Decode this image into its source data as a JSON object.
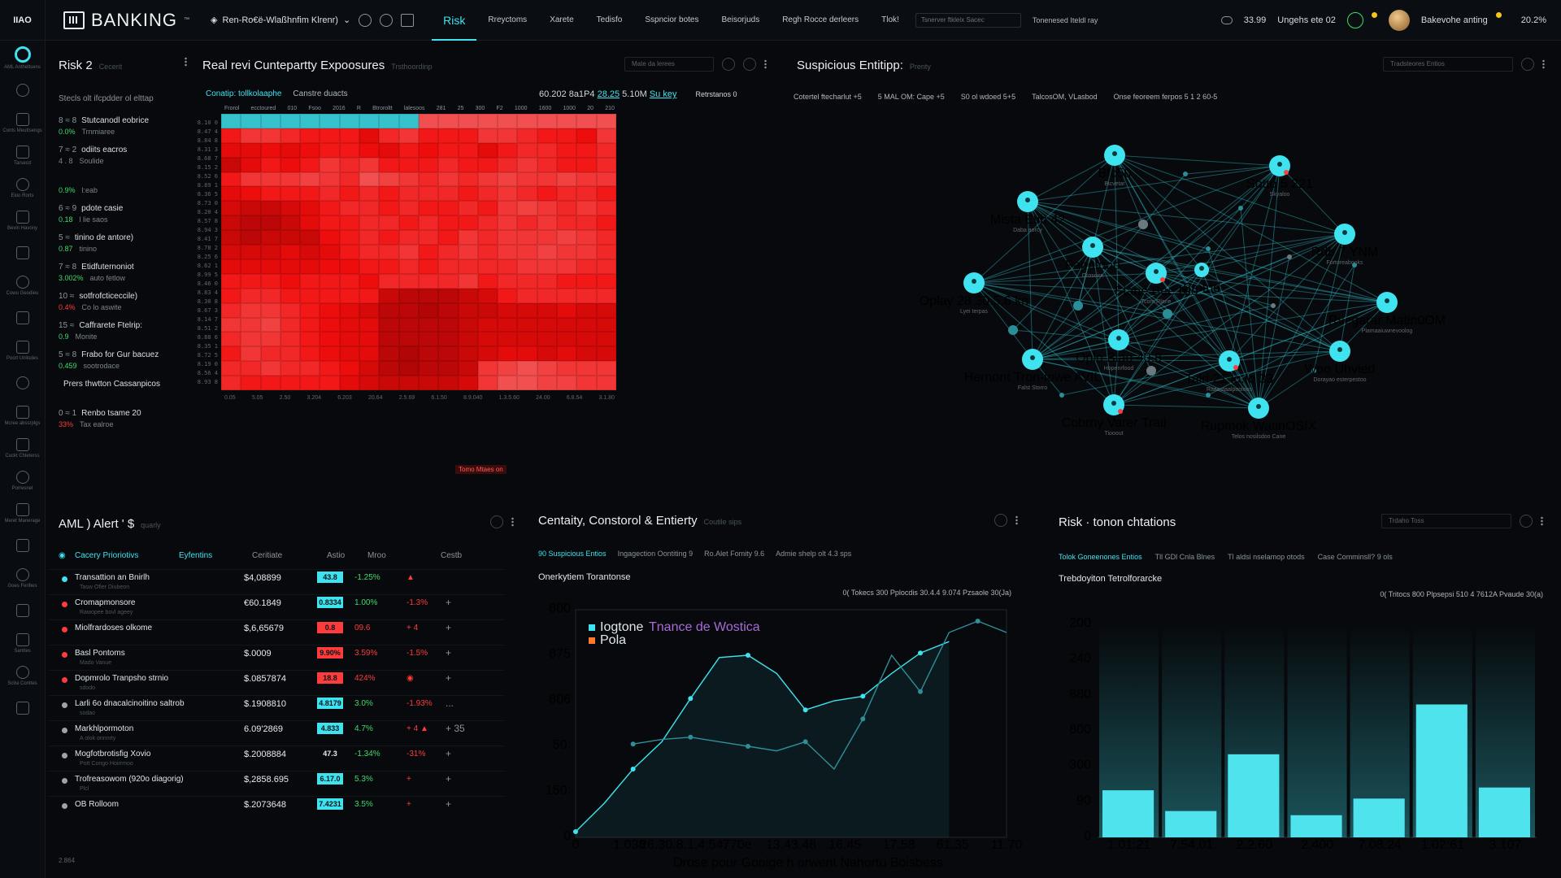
{
  "topbar": {
    "mini_logo": "IIAO",
    "brand": "BANKING",
    "brand_tm": "™",
    "crumb": "Ren-Ro€ë-Wlaßhnfim Klrenr)",
    "nav": [
      "Risk",
      "Rreyctoms",
      "Xarete",
      "Tedisfo",
      "Sspncior botes",
      "Beisorjuds",
      "Regh Rocce derleers",
      "Tlok!"
    ],
    "active_nav": "Risk",
    "select_placeholder": "Tsnerver ftkleix Sacec",
    "link": "Tonenesed Iteldl ray",
    "stat": "33.99",
    "stat_label": "Ungehs ete 02",
    "user": "Bakevohe anting",
    "version": "20.2%"
  },
  "sidebar": {
    "items": [
      {
        "icon": "target-icon",
        "label": "AML Antheltsens"
      },
      {
        "icon": "globe-icon",
        "label": ""
      },
      {
        "icon": "flow-icon",
        "label": "Conts Meuttsengs"
      },
      {
        "icon": "clock-icon",
        "label": "Tarsecd"
      },
      {
        "icon": "pin-icon",
        "label": "Eloo Rorts"
      },
      {
        "icon": "gear-icon",
        "label": "Bevin Havony"
      },
      {
        "icon": "upload-icon",
        "label": ""
      },
      {
        "icon": "pen-icon",
        "label": "Cowu Geodieu"
      },
      {
        "icon": "users-icon",
        "label": ""
      },
      {
        "icon": "eye-icon",
        "label": "Poorl Unllodes"
      },
      {
        "icon": "grid-icon",
        "label": ""
      },
      {
        "icon": "home-icon",
        "label": "Mcree abssrplgs"
      },
      {
        "icon": "settings-icon",
        "label": "Cuckt Chleterss"
      },
      {
        "icon": "layers-icon",
        "label": "Porresnel"
      },
      {
        "icon": "mail-icon",
        "label": "Meret Manerage"
      },
      {
        "icon": "moon-icon",
        "label": ""
      },
      {
        "icon": "help-icon",
        "label": "Goes Feribes"
      },
      {
        "icon": "edit-icon",
        "label": ""
      },
      {
        "icon": "bell-icon",
        "label": "Santtes"
      },
      {
        "icon": "doc-icon",
        "label": "Sclisi Conttes"
      },
      {
        "icon": "send-icon",
        "label": ""
      }
    ]
  },
  "risk": {
    "title": "Risk",
    "count": "2",
    "subtitle": "Cecerit",
    "header": "Stecls olt ifcpdder ol elttap",
    "items": [
      {
        "num": "8 ≈ 8",
        "name": "Stutcanodl eobrice",
        "val": "0.0%",
        "val_color": "g",
        "sub": "Trnmiaree"
      },
      {
        "num": "7 ≈ 2",
        "name": "odiits eacros",
        "val": "4 . 8",
        "val_color": "n",
        "sub": "Soulide"
      },
      {
        "num": "",
        "name": "",
        "val": "0.9%",
        "val_color": "g",
        "sub": "l:eab"
      },
      {
        "num": "6 ≈ 9",
        "name": "pdote casie",
        "val": "0.18",
        "val_color": "g",
        "sub": "l lie saos"
      },
      {
        "num": "5 ≈",
        "name": "tinino de antore)",
        "val": "0.87",
        "val_color": "g",
        "sub": "tinino"
      },
      {
        "num": "7 ≈ 8",
        "name": "Etidfuternoniot",
        "val": "3.002%",
        "val_color": "g",
        "sub": "auto fetlow"
      },
      {
        "num": "10 ≈",
        "name": "sotfrofcticeccile)",
        "val": "0.4%",
        "val_color": "r",
        "sub": "Co lo aswite"
      },
      {
        "num": "15 ≈",
        "name": "Caffrarete Ftelrip:",
        "val": "0.9",
        "val_color": "g",
        "sub": "Monite"
      },
      {
        "num": "5 ≈ 8",
        "name": "Frabo for Gur bacuez",
        "val": "0.459",
        "val_color": "g",
        "sub": "sootrodace"
      },
      {
        "num": "",
        "name": "Prers thwtton Cassanpicos",
        "val": "",
        "val_color": "n",
        "sub": ""
      },
      {
        "num": "0 ≈ 1",
        "name": "Renbo tsame 20",
        "val": "33%",
        "val_color": "r",
        "sub": "Tax ealroe"
      }
    ]
  },
  "exposures": {
    "title": "Real revi Cuntepartty Expoosures",
    "subtitle": "Trsthoordinp",
    "search": "Mate da lerees",
    "tab_active": "Conatip: tollkolaaphe",
    "tab2": "Canstre duacts",
    "stat_a": "60.202 8a1P4",
    "stat_b": "28.25",
    "stat_c": "5.10M",
    "stat_d": "Su key",
    "stat_e": "Retrstanos 0",
    "x_top": [
      "Frorol",
      "ecctoured",
      "010",
      "Fsoo",
      "2016",
      "R",
      "Btroroltt",
      "lalesoos",
      "281",
      "25",
      "300",
      "F2",
      "1000",
      "1600",
      "1000",
      "20",
      "210"
    ],
    "x_bottom": [
      "0.05",
      "5.05",
      "2.50",
      "3.204",
      "6.203",
      "20.64",
      "2.5.69",
      "6.1.50",
      "8.9.040",
      "1.3.5.60",
      "24.00",
      "6.8.54",
      "3.1.80"
    ],
    "footer_label": "Tomo Mtaes on"
  },
  "network": {
    "title": "Suspicious Entitipp:",
    "subtitle": "Prenty",
    "search": "Tradsteores Entios",
    "filters": [
      "Cotertel ftecharlut +5",
      "5 MAL OM: Cape +5",
      "S0 ol wdoed 5+5",
      "TalcosOM, VLasbod",
      "Onse feoreem ferpos 5 1 2 60-5"
    ],
    "nodes": [
      {
        "label": "Bfc50",
        "sub": "Bicvetar"
      },
      {
        "label": "Sotto 5 221",
        "sub": "Skyaloo"
      },
      {
        "label": "Mista Etib 42",
        "sub": "Daba aorcy"
      },
      {
        "label": "Fapotooo",
        "sub": "Grosoirn"
      },
      {
        "label": "Stane Bee Nlo",
        "sub": "Tcom Rlane"
      },
      {
        "label": "Rdb 7 YNM",
        "sub": "Fortoreabooks"
      },
      {
        "label": "Oplay 28 30.5.6 kn",
        "sub": "Lyei terpas"
      },
      {
        "label": "Rsegarar Matin0OM",
        "sub": "Plamaaiuwnevoolog"
      },
      {
        "label": "Hernont Tron-lowe AVIL",
        "sub": "Falst Storro"
      },
      {
        "label": "Oplo Blao 40.8",
        "sub": "Hopenrfood"
      },
      {
        "label": "Tald 21 lo.fo 33",
        "sub": "Raaastaalpooloos"
      },
      {
        "label": "Woo Uhvied",
        "sub": "Dorayao esterpestoo"
      },
      {
        "label": "Cobrny Varer Trail",
        "sub": "Tiooout"
      },
      {
        "label": "Rupmok WatinOSIX",
        "sub": "Telos nosilsdoo Cane"
      },
      {
        "label": "Stotnd",
        "sub": ""
      }
    ]
  },
  "aml": {
    "title": "AML ) Alert ' $",
    "subtitle": "quarly",
    "tab1": "Cacery Prioriotivs",
    "tab2": "Eyfentins",
    "cols": [
      "Ceritiate",
      "Astio",
      "Mroo",
      "Cestb"
    ],
    "rows": [
      {
        "name": "Transattion an Bnirlh",
        "sub": "Tasw Ofier Diubeon",
        "amount": "$4,08899",
        "badge": "43.8",
        "badge_color": "#3ee3ef",
        "pct": "-1.25%",
        "pct_color": "g",
        "chg": "▲",
        "chg_color": "r",
        "act": "",
        "mark": "#3ee3ef"
      },
      {
        "name": "Cromapmonsore",
        "sub": "Rawopee bovl ageey",
        "amount": "€60.1849",
        "badge": "0.8334",
        "badge_color": "#3ee3ef",
        "pct": "1.00%",
        "pct_color": "g",
        "chg": "-1.3%",
        "chg_color": "r",
        "act": "+",
        "mark": "#ff3b3b"
      },
      {
        "name": "Miolfrardoses olkome",
        "sub": "",
        "amount": "$,6,65679",
        "badge": "0.8",
        "badge_color": "#ff3b3b",
        "pct": "09.6",
        "pct_color": "r",
        "chg": "+ 4",
        "chg_color": "r",
        "act": "+",
        "mark": "#ff3b3b"
      },
      {
        "name": "Basl Pontoms",
        "sub": "Mado Vanue",
        "amount": "$.0009",
        "badge": "9.90%",
        "badge_color": "#ff3b3b",
        "pct": "3.59%",
        "pct_color": "r",
        "chg": "-1.5%",
        "chg_color": "r",
        "act": "+",
        "mark": "#ff3b3b"
      },
      {
        "name": "Dopmrolo Tranpsho strnio",
        "sub": "sdodo",
        "amount": "$.0857874",
        "badge": "18.8",
        "badge_color": "#ff3b3b",
        "pct": "424%",
        "pct_color": "r",
        "chg": "◉",
        "chg_color": "r",
        "act": "+",
        "mark": "#ff3b3b"
      },
      {
        "name": "Larli 6o dnacalcinoitino saltrob",
        "sub": "sodao",
        "amount": "$.1908810",
        "badge": "4.8179",
        "badge_color": "#3ee3ef",
        "pct": "3.0%",
        "pct_color": "g",
        "chg": "-1.93%",
        "chg_color": "r",
        "act": "...",
        "mark": "#9aa4aa"
      },
      {
        "name": "Markhlpormoton",
        "sub": "A olok onnnrty",
        "amount": "6.09'2869",
        "badge": "4.833",
        "badge_color": "#3ee3ef",
        "pct": "4.7%",
        "pct_color": "g",
        "chg": "+ 4 ▲",
        "chg_color": "r",
        "act": "+ 35",
        "mark": "#9aa4aa"
      },
      {
        "name": "Mogfotbrotisfig Xovio",
        "sub": "Pott Congo Hoirrmoo",
        "amount": "$.2008884",
        "badge": "47.3",
        "badge_color": "",
        "pct": "-1.34%",
        "pct_color": "g",
        "chg": "-31%",
        "chg_color": "r",
        "act": "+",
        "mark": "#9aa4aa"
      },
      {
        "name": "Trofreasowom (920o diagorig)",
        "sub": "Plcl",
        "amount": "$,2858.695",
        "badge": "6.17.0",
        "badge_color": "#3ee3ef",
        "pct": "5.3%",
        "pct_color": "g",
        "chg": "+",
        "chg_color": "r",
        "act": "+",
        "mark": "#9aa4aa"
      },
      {
        "name": "OB Rolloom",
        "sub": "",
        "amount": "$.2073648",
        "badge": "7.4231",
        "badge_color": "#3ee3ef",
        "pct": "3.5%",
        "pct_color": "g",
        "chg": "+",
        "chg_color": "r",
        "act": "+",
        "mark": "#9aa4aa"
      }
    ],
    "footer": "2.864"
  },
  "centrality": {
    "title": "Centaity, Constorol & Entierty",
    "subtitle": "Coutile sips",
    "filters": [
      "90 Suspicious Entios",
      "Ingagection Oontiting 9",
      "Ro.Alet Fomity 9.6",
      "Admie shelp olt 4.3 sps"
    ],
    "chart_title": "Onerkytiem Torantonse",
    "stats": "0( Tokecs 300 Pplocdis 30.4.4   9.074 Pzsaole 30(Ja)",
    "legend": [
      "Iogtone",
      "Pola"
    ],
    "legend_sub": "Tnance de Wostica",
    "x_labels": [
      "0",
      "1.038",
      "26.30.8.1.4:54.",
      "770e",
      "13.43.48",
      "16.45",
      "17.58",
      "61.35",
      "11.70"
    ],
    "y_labels": [
      "800",
      "875",
      "806",
      "50.",
      "150.",
      "0"
    ],
    "footer": "Drose pour Gooige h orwent Nahortu Boisbess"
  },
  "riskbars": {
    "title": "Risk · tonon chtations",
    "search": "Trdaho Toss",
    "filters": [
      "Tolok Goneenones Entios",
      "Tll GDl Cnla Blnes",
      "Tl aldsi nselamop otods",
      "Case Comminsll? 9 ols"
    ],
    "chart_title": "Trebdoyiton Tetrolforarcke",
    "stats": "0( Tritocs 800 Plpsepsi 510 4   7612A Pvaude 30(a)",
    "y_labels": [
      "200",
      "240",
      "880",
      "800",
      "300",
      "90",
      "0"
    ],
    "x_labels": [
      "1.01:21",
      "7.54.01",
      "2.2.60",
      "2.400",
      "7.08.24",
      "1.02:61",
      "3.107"
    ]
  },
  "chart_data": [
    {
      "type": "heatmap",
      "title": "Real revi Cuntepartty Expoosures",
      "note": "Intensity grid in red with a cyan highlighted top band; intensity values 0-1",
      "rows": 19,
      "cols": 20,
      "values": [
        [
          0.1,
          0.1,
          0.1,
          0.1,
          0.1,
          0.1,
          0.1,
          0.1,
          0.1,
          0.1,
          0.4,
          0.4,
          0.4,
          0.4,
          0.4,
          0.4,
          0.4,
          0.4,
          0.4,
          0.4
        ],
        [
          0.6,
          0.5,
          0.5,
          0.55,
          0.6,
          0.6,
          0.6,
          0.7,
          0.55,
          0.5,
          0.6,
          0.6,
          0.6,
          0.5,
          0.5,
          0.55,
          0.6,
          0.6,
          0.65,
          0.5
        ],
        [
          0.7,
          0.7,
          0.65,
          0.7,
          0.65,
          0.6,
          0.6,
          0.65,
          0.7,
          0.6,
          0.65,
          0.6,
          0.6,
          0.7,
          0.6,
          0.55,
          0.55,
          0.6,
          0.6,
          0.55
        ],
        [
          0.8,
          0.7,
          0.6,
          0.65,
          0.6,
          0.5,
          0.55,
          0.5,
          0.6,
          0.6,
          0.6,
          0.55,
          0.6,
          0.6,
          0.55,
          0.5,
          0.55,
          0.6,
          0.6,
          0.55
        ],
        [
          0.6,
          0.5,
          0.5,
          0.5,
          0.45,
          0.5,
          0.55,
          0.4,
          0.45,
          0.5,
          0.55,
          0.5,
          0.55,
          0.5,
          0.45,
          0.5,
          0.5,
          0.45,
          0.5,
          0.5
        ],
        [
          0.7,
          0.65,
          0.6,
          0.6,
          0.6,
          0.55,
          0.6,
          0.55,
          0.6,
          0.55,
          0.55,
          0.55,
          0.6,
          0.55,
          0.5,
          0.55,
          0.6,
          0.55,
          0.55,
          0.6
        ],
        [
          0.75,
          0.8,
          0.8,
          0.75,
          0.7,
          0.6,
          0.55,
          0.55,
          0.6,
          0.55,
          0.6,
          0.6,
          0.55,
          0.6,
          0.5,
          0.45,
          0.5,
          0.55,
          0.5,
          0.55
        ],
        [
          0.8,
          0.85,
          0.85,
          0.8,
          0.7,
          0.6,
          0.6,
          0.55,
          0.55,
          0.6,
          0.55,
          0.6,
          0.6,
          0.55,
          0.5,
          0.55,
          0.5,
          0.55,
          0.55,
          0.6
        ],
        [
          0.8,
          0.85,
          0.8,
          0.8,
          0.8,
          0.65,
          0.6,
          0.55,
          0.6,
          0.55,
          0.55,
          0.6,
          0.5,
          0.55,
          0.5,
          0.5,
          0.5,
          0.45,
          0.5,
          0.55
        ],
        [
          0.75,
          0.75,
          0.75,
          0.7,
          0.75,
          0.7,
          0.6,
          0.55,
          0.55,
          0.5,
          0.6,
          0.55,
          0.5,
          0.55,
          0.5,
          0.5,
          0.45,
          0.5,
          0.5,
          0.55
        ],
        [
          0.7,
          0.7,
          0.7,
          0.7,
          0.7,
          0.65,
          0.65,
          0.6,
          0.6,
          0.55,
          0.6,
          0.55,
          0.55,
          0.55,
          0.55,
          0.5,
          0.5,
          0.5,
          0.55,
          0.55
        ],
        [
          0.6,
          0.6,
          0.6,
          0.65,
          0.6,
          0.6,
          0.6,
          0.65,
          0.55,
          0.55,
          0.55,
          0.55,
          0.5,
          0.6,
          0.55,
          0.55,
          0.55,
          0.6,
          0.6,
          0.6
        ],
        [
          0.6,
          0.55,
          0.55,
          0.6,
          0.6,
          0.6,
          0.6,
          0.6,
          0.8,
          0.85,
          0.85,
          0.85,
          0.8,
          0.75,
          0.6,
          0.55,
          0.55,
          0.55,
          0.55,
          0.55
        ],
        [
          0.55,
          0.5,
          0.5,
          0.55,
          0.6,
          0.65,
          0.7,
          0.75,
          0.85,
          0.85,
          0.9,
          0.85,
          0.8,
          0.8,
          0.75,
          0.75,
          0.75,
          0.7,
          0.75,
          0.75
        ],
        [
          0.5,
          0.5,
          0.45,
          0.55,
          0.6,
          0.65,
          0.7,
          0.7,
          0.85,
          0.85,
          0.85,
          0.85,
          0.8,
          0.75,
          0.75,
          0.75,
          0.75,
          0.75,
          0.75,
          0.75
        ],
        [
          0.55,
          0.5,
          0.5,
          0.55,
          0.6,
          0.65,
          0.7,
          0.7,
          0.85,
          0.85,
          0.85,
          0.85,
          0.8,
          0.75,
          0.75,
          0.75,
          0.75,
          0.75,
          0.75,
          0.75
        ],
        [
          0.6,
          0.5,
          0.55,
          0.55,
          0.6,
          0.65,
          0.7,
          0.7,
          0.85,
          0.9,
          0.85,
          0.85,
          0.8,
          0.75,
          0.7,
          0.7,
          0.75,
          0.7,
          0.75,
          0.75
        ],
        [
          0.55,
          0.55,
          0.5,
          0.55,
          0.55,
          0.6,
          0.65,
          0.75,
          0.85,
          0.9,
          0.85,
          0.85,
          0.8,
          0.5,
          0.45,
          0.4,
          0.45,
          0.5,
          0.5,
          0.5
        ],
        [
          0.55,
          0.6,
          0.6,
          0.6,
          0.6,
          0.6,
          0.7,
          0.75,
          0.8,
          0.8,
          0.8,
          0.8,
          0.75,
          0.5,
          0.4,
          0.4,
          0.45,
          0.45,
          0.5,
          0.5
        ]
      ]
    },
    {
      "type": "line",
      "title": "Onerkytiem Torantonse",
      "note": "Two series on arbitrary 0-1000 scale",
      "series": [
        {
          "name": "Iogtone",
          "x": [
            0,
            1,
            2,
            3,
            4,
            5,
            6,
            7,
            8,
            9,
            10,
            11,
            12,
            13
          ],
          "y": [
            25,
            150,
            300,
            420,
            610,
            790,
            800,
            720,
            560,
            600,
            620,
            720,
            810,
            860
          ]
        },
        {
          "name": "Pola",
          "x": [
            2,
            3,
            4,
            5,
            6,
            7,
            8,
            9,
            10,
            11,
            12,
            13,
            14,
            15
          ],
          "y": [
            410,
            430,
            440,
            420,
            400,
            380,
            420,
            300,
            520,
            800,
            640,
            900,
            950,
            900
          ]
        }
      ],
      "ylim": [
        0,
        1000
      ]
    },
    {
      "type": "bar",
      "title": "Trebdoyiton Tetrolforarcke",
      "categories": [
        "1.01:21",
        "7.54.01",
        "2.2.60",
        "2.400",
        "7.08.24",
        "1.02:61",
        "3.107"
      ],
      "values": [
        170,
        95,
        300,
        80,
        140,
        480,
        180
      ],
      "ylim": [
        0,
        1000
      ]
    }
  ]
}
